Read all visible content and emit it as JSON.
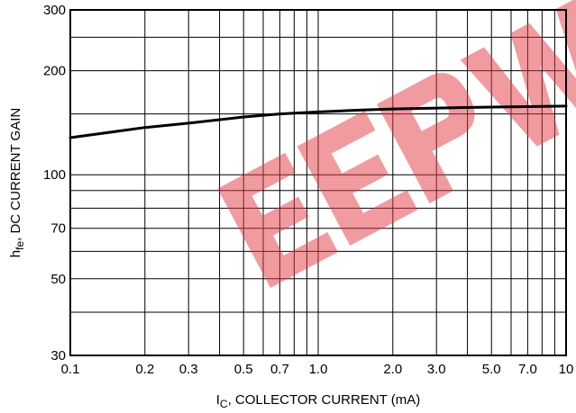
{
  "chart_data": {
    "type": "line",
    "xlabel": {
      "main": "I",
      "sub": "C",
      "rest": ", COLLECTOR CURRENT (mA)"
    },
    "ylabel": {
      "main": "h",
      "sub": "fe",
      "rest": ", DC CURRENT GAIN"
    },
    "x_scale": "log",
    "y_scale": "log",
    "xlim": [
      0.1,
      10
    ],
    "ylim": [
      30,
      300
    ],
    "grid": true,
    "x_ticks": [
      {
        "value": 0.1,
        "label": "0.1"
      },
      {
        "value": 0.2,
        "label": "0.2"
      },
      {
        "value": 0.3,
        "label": "0.3"
      },
      {
        "value": 0.5,
        "label": "0.5"
      },
      {
        "value": 0.7,
        "label": "0.7"
      },
      {
        "value": 1.0,
        "label": "1.0"
      },
      {
        "value": 2.0,
        "label": "2.0"
      },
      {
        "value": 3.0,
        "label": "3.0"
      },
      {
        "value": 5.0,
        "label": "5.0"
      },
      {
        "value": 7.0,
        "label": "7.0"
      },
      {
        "value": 10,
        "label": "10"
      }
    ],
    "x_grid": [
      0.1,
      0.2,
      0.3,
      0.4,
      0.5,
      0.6,
      0.7,
      0.8,
      0.9,
      1,
      2,
      3,
      4,
      5,
      6,
      7,
      8,
      9,
      10
    ],
    "y_ticks": [
      {
        "value": 30,
        "label": "30"
      },
      {
        "value": 50,
        "label": "50"
      },
      {
        "value": 70,
        "label": "70"
      },
      {
        "value": 100,
        "label": "100"
      },
      {
        "value": 200,
        "label": "200"
      },
      {
        "value": 300,
        "label": "300"
      }
    ],
    "y_grid": [
      30,
      40,
      50,
      60,
      70,
      80,
      90,
      100,
      150,
      200,
      250,
      300
    ],
    "series": [
      {
        "color": "#000000",
        "x": [
          0.1,
          0.2,
          0.3,
          0.5,
          0.7,
          1.0,
          1.5,
          2.0,
          3.0,
          5.0,
          7.0,
          10
        ],
        "y": [
          128,
          137,
          141,
          147,
          150,
          152,
          154,
          155,
          156,
          157,
          157.5,
          158
        ]
      }
    ]
  },
  "watermark": {
    "text": "EEPW",
    "color": "#e23a44"
  }
}
